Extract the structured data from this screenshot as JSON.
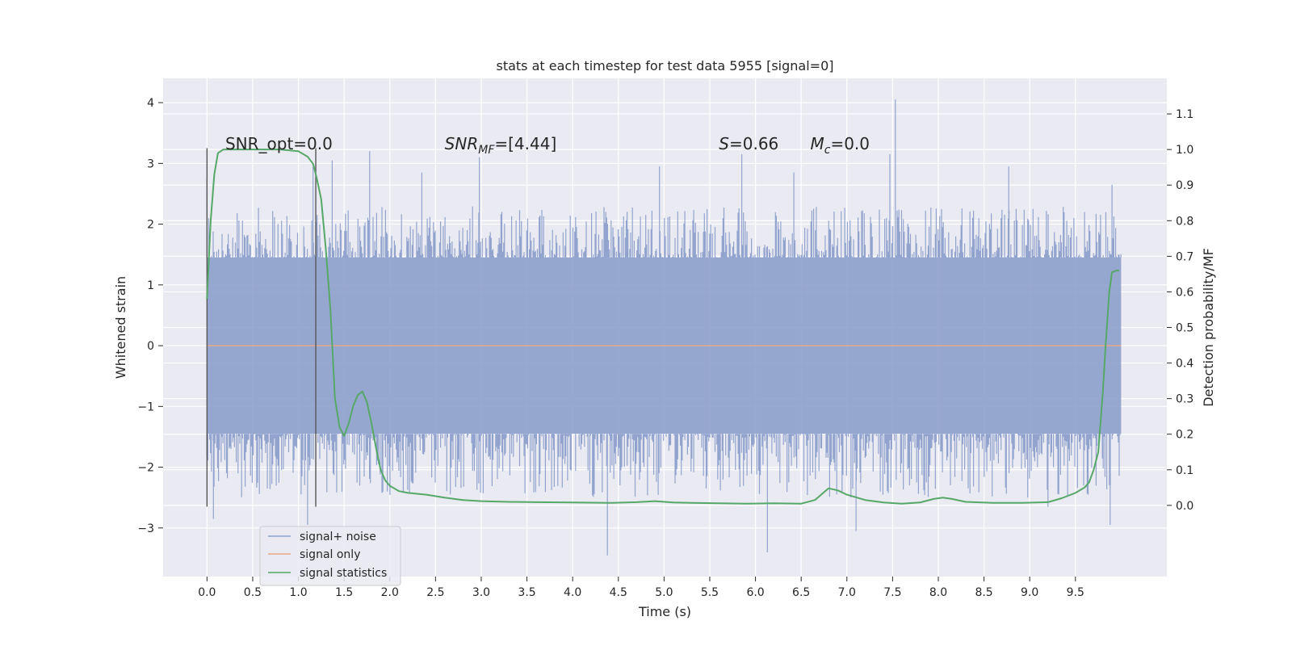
{
  "chart_data": {
    "type": "line",
    "title": "stats at each timestep for test data 5955 [signal=0]",
    "xlabel": "Time (s)",
    "ylabel_left": "Whitened strain",
    "ylabel_right": "Detection probability/MF",
    "xlim": [
      -0.48,
      10.5
    ],
    "ylim_left": [
      -3.8,
      4.4
    ],
    "ylim_right": [
      -0.2,
      1.2
    ],
    "x_ticks": [
      0.0,
      0.5,
      1.0,
      1.5,
      2.0,
      2.5,
      3.0,
      3.5,
      4.0,
      4.5,
      5.0,
      5.5,
      6.0,
      6.5,
      7.0,
      7.5,
      8.0,
      8.5,
      9.0,
      9.5
    ],
    "x_tick_labels": [
      "0.0",
      "0.5",
      "1.0",
      "1.5",
      "2.0",
      "2.5",
      "3.0",
      "3.5",
      "4.0",
      "4.5",
      "5.0",
      "5.5",
      "6.0",
      "6.5",
      "7.0",
      "7.5",
      "8.0",
      "8.5",
      "9.0",
      "9.5"
    ],
    "y_ticks_left": [
      -3,
      -2,
      -1,
      0,
      1,
      2,
      3,
      4
    ],
    "y_tick_labels_left": [
      "−3",
      "−2",
      "−1",
      "0",
      "1",
      "2",
      "3",
      "4"
    ],
    "y_ticks_right": [
      0.0,
      0.1,
      0.2,
      0.3,
      0.4,
      0.5,
      0.6,
      0.7,
      0.8,
      0.9,
      1.0,
      1.1
    ],
    "y_tick_labels_right": [
      "0.0",
      "0.1",
      "0.2",
      "0.3",
      "0.4",
      "0.5",
      "0.6",
      "0.7",
      "0.8",
      "0.9",
      "1.0",
      "1.1"
    ],
    "grid": true,
    "legend_placement": "lower-left",
    "annotations": {
      "snr_opt": "SNR_opt=0.0",
      "snr_mf_sym": "SNR",
      "snr_mf_sub": "MF",
      "snr_mf_rest": "=[4.44]",
      "s_sym": "S",
      "s_rest": "=0.66",
      "mc_sym": "M",
      "mc_sub": "c",
      "mc_rest": "=0.0"
    },
    "vlines": {
      "x": [
        0.0,
        1.19
      ],
      "y_range": [
        -2.65,
        3.25
      ]
    },
    "series": [
      {
        "name": "signal+ noise",
        "axis": "left",
        "color": "#8da0cb",
        "x_range": [
          0.0,
          10.0
        ],
        "band": [
          -1.45,
          1.45
        ],
        "spike_max": 2.3,
        "spike_min": -2.5,
        "peaks": [
          [
            0.0,
            2.75
          ],
          [
            0.07,
            -2.85
          ],
          [
            1.1,
            -2.95
          ],
          [
            1.16,
            2.95
          ],
          [
            1.37,
            3.05
          ],
          [
            1.78,
            3.2
          ],
          [
            2.35,
            2.85
          ],
          [
            2.98,
            3.1
          ],
          [
            4.38,
            -3.45
          ],
          [
            4.95,
            2.95
          ],
          [
            5.85,
            3.15
          ],
          [
            6.13,
            -3.4
          ],
          [
            6.42,
            2.85
          ],
          [
            7.1,
            -3.05
          ],
          [
            7.53,
            4.05
          ],
          [
            7.47,
            3.15
          ],
          [
            8.77,
            2.95
          ],
          [
            9.2,
            -2.65
          ],
          [
            9.88,
            -2.95
          ],
          [
            9.9,
            2.65
          ]
        ]
      },
      {
        "name": "signal only",
        "axis": "left",
        "color": "#e8a888",
        "x": [
          0.0,
          10.0
        ],
        "y": [
          0.0,
          0.0
        ]
      },
      {
        "name": "signal statistics",
        "axis": "right",
        "color": "#55a868",
        "x": [
          0.0,
          0.04,
          0.08,
          0.12,
          0.18,
          0.25,
          0.4,
          0.6,
          0.8,
          1.0,
          1.1,
          1.16,
          1.2,
          1.25,
          1.3,
          1.35,
          1.4,
          1.45,
          1.5,
          1.55,
          1.6,
          1.65,
          1.7,
          1.75,
          1.8,
          1.85,
          1.9,
          1.95,
          2.0,
          2.1,
          2.2,
          2.4,
          2.6,
          2.8,
          3.0,
          3.3,
          3.6,
          4.0,
          4.4,
          4.7,
          4.9,
          5.1,
          5.3,
          5.6,
          5.9,
          6.2,
          6.5,
          6.65,
          6.8,
          6.9,
          7.0,
          7.2,
          7.4,
          7.6,
          7.8,
          7.95,
          8.05,
          8.15,
          8.3,
          8.6,
          8.9,
          9.2,
          9.35,
          9.5,
          9.6,
          9.65,
          9.7,
          9.75,
          9.8,
          9.83,
          9.87,
          9.9,
          9.95,
          9.98
        ],
        "y": [
          0.58,
          0.8,
          0.93,
          0.99,
          1.0,
          1.0,
          1.0,
          1.0,
          1.0,
          0.995,
          0.98,
          0.96,
          0.92,
          0.86,
          0.72,
          0.55,
          0.3,
          0.22,
          0.195,
          0.23,
          0.28,
          0.31,
          0.32,
          0.29,
          0.23,
          0.16,
          0.1,
          0.07,
          0.055,
          0.04,
          0.035,
          0.03,
          0.022,
          0.015,
          0.012,
          0.01,
          0.009,
          0.008,
          0.007,
          0.009,
          0.012,
          0.008,
          0.007,
          0.006,
          0.005,
          0.006,
          0.005,
          0.015,
          0.048,
          0.042,
          0.03,
          0.015,
          0.008,
          0.005,
          0.008,
          0.018,
          0.022,
          0.018,
          0.01,
          0.007,
          0.007,
          0.009,
          0.02,
          0.035,
          0.05,
          0.065,
          0.1,
          0.15,
          0.32,
          0.45,
          0.6,
          0.655,
          0.66,
          0.66
        ]
      }
    ]
  }
}
